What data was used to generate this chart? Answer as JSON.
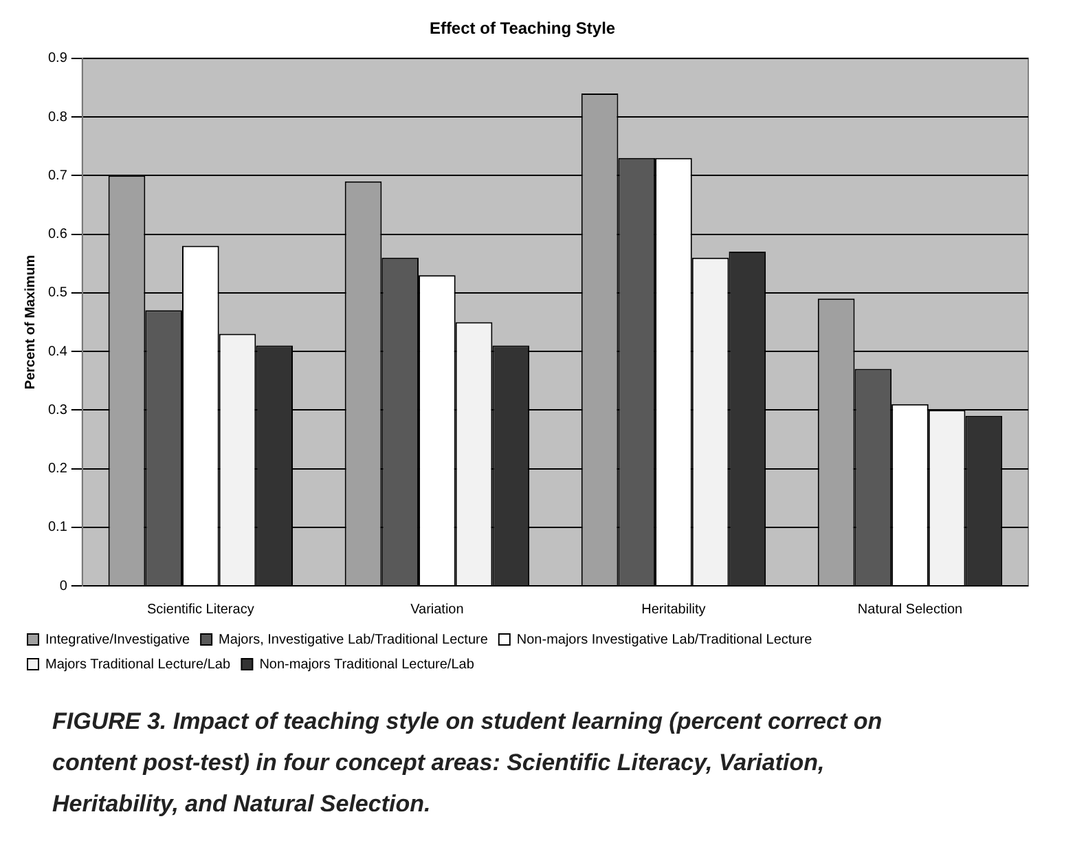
{
  "chart_data": {
    "type": "bar",
    "title": "Effect of Teaching Style",
    "ylabel": "Percent of Maximum",
    "categories": [
      "Scientific Literacy",
      "Variation",
      "Heritability",
      "Natural Selection"
    ],
    "series": [
      {
        "name": "Integrative/Investigative",
        "color": "#a0a0a0",
        "values": [
          0.7,
          0.69,
          0.84,
          0.49
        ]
      },
      {
        "name": "Majors, Investigative Lab/Traditional Lecture",
        "color": "#595959",
        "values": [
          0.47,
          0.56,
          0.73,
          0.37
        ]
      },
      {
        "name": "Non-majors Investigative Lab/Traditional Lecture",
        "color": "#ffffff",
        "values": [
          0.58,
          0.53,
          0.73,
          0.31
        ]
      },
      {
        "name": "Majors Traditional Lecture/Lab",
        "color": "#f2f2f2",
        "values": [
          0.43,
          0.45,
          0.56,
          0.3
        ]
      },
      {
        "name": "Non-majors Traditional Lecture/Lab",
        "color": "#333333",
        "values": [
          0.41,
          0.41,
          0.57,
          0.29
        ]
      }
    ],
    "ylim": [
      0,
      0.9
    ],
    "yticks": [
      0,
      0.1,
      0.2,
      0.3,
      0.4,
      0.5,
      0.6,
      0.7,
      0.8,
      0.9
    ],
    "grid": "y",
    "legend": "bottom",
    "annotations": [
      "FIGURE 3. Impact of teaching style on student learning (percent correct on content post-test) in four concept areas: Scientific Literacy, Variation, Heritability, and Natural Selection."
    ]
  }
}
